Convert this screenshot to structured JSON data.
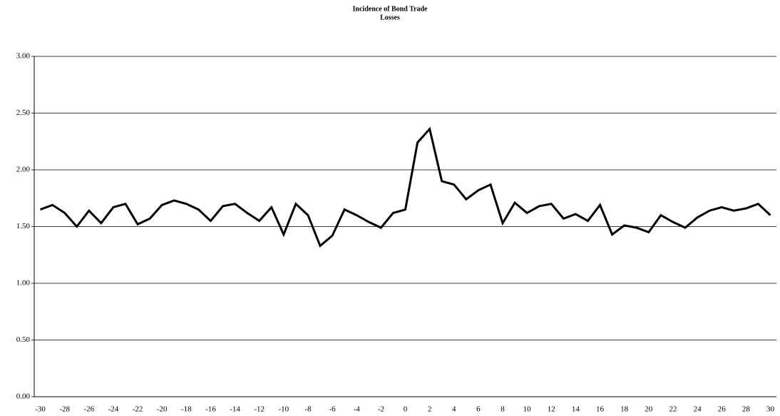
{
  "chart_data": {
    "type": "line",
    "title": [
      "Incidence of Bond Trade",
      "Losses"
    ],
    "x": [
      -30,
      -29,
      -28,
      -27,
      -26,
      -25,
      -24,
      -23,
      -22,
      -21,
      -20,
      -19,
      -18,
      -17,
      -16,
      -15,
      -14,
      -13,
      -12,
      -11,
      -10,
      -9,
      -8,
      -7,
      -6,
      -5,
      -4,
      -3,
      -2,
      -1,
      0,
      1,
      2,
      3,
      4,
      5,
      6,
      7,
      8,
      9,
      10,
      11,
      12,
      13,
      14,
      15,
      16,
      17,
      18,
      19,
      20,
      21,
      22,
      23,
      24,
      25,
      26,
      27,
      28,
      29,
      30
    ],
    "series": [
      {
        "color": "#000000",
        "values": [
          1.65,
          1.69,
          1.62,
          1.5,
          1.64,
          1.53,
          1.67,
          1.7,
          1.52,
          1.57,
          1.69,
          1.73,
          1.7,
          1.65,
          1.55,
          1.68,
          1.7,
          1.62,
          1.55,
          1.67,
          1.43,
          1.7,
          1.6,
          1.33,
          1.42,
          1.65,
          1.6,
          1.54,
          1.49,
          1.62,
          1.65,
          2.24,
          2.36,
          1.9,
          1.87,
          1.74,
          1.82,
          1.87,
          1.53,
          1.71,
          1.62,
          1.68,
          1.7,
          1.57,
          1.61,
          1.55,
          1.69,
          1.43,
          1.51,
          1.49,
          1.45,
          1.6,
          1.54,
          1.49,
          1.58,
          1.64,
          1.67,
          1.64,
          1.66,
          1.7,
          1.6
        ]
      }
    ],
    "xlim": [
      -30.5,
      30.5
    ],
    "xticks": [
      -30,
      -28,
      -26,
      -24,
      -22,
      -20,
      -18,
      -16,
      -14,
      -12,
      -10,
      -8,
      -6,
      -4,
      -2,
      0,
      2,
      4,
      6,
      8,
      10,
      12,
      14,
      16,
      18,
      20,
      22,
      24,
      26,
      28,
      30
    ],
    "ylim": [
      0,
      3
    ],
    "yticks": [
      {
        "value": 0,
        "label": "0.00"
      },
      {
        "value": 0.5,
        "label": "0.50"
      },
      {
        "value": 1,
        "label": "1.00"
      },
      {
        "value": 1.5,
        "label": "1.50"
      },
      {
        "value": 2,
        "label": "2.00"
      },
      {
        "value": 2.5,
        "label": "2.50"
      },
      {
        "value": 3,
        "label": "3.00"
      }
    ],
    "grid": true
  }
}
